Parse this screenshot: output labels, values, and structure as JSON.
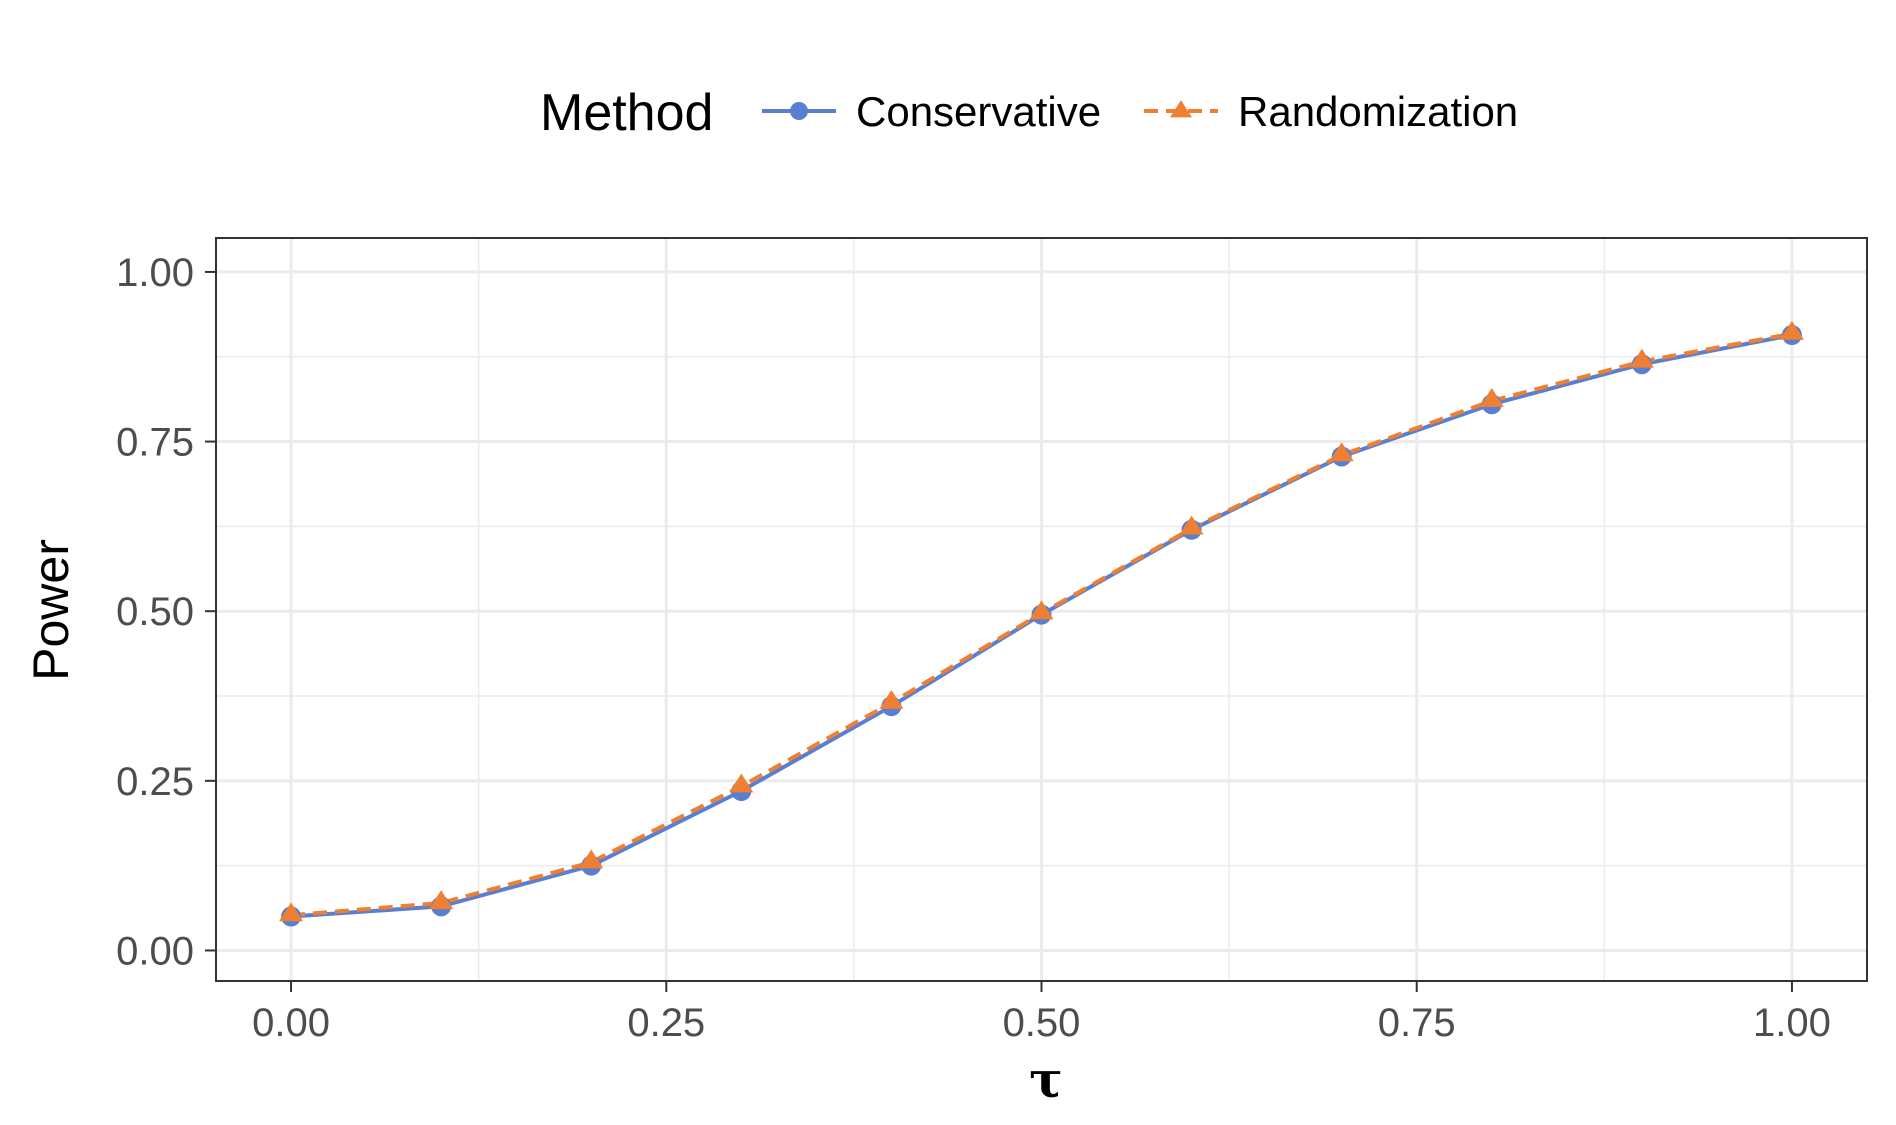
{
  "chart_data": {
    "type": "line",
    "xlabel": "τ",
    "ylabel": "Power",
    "xlim": [
      -0.05,
      1.05
    ],
    "ylim": [
      -0.045,
      1.05
    ],
    "x_ticks": [
      0,
      0.25,
      0.5,
      0.75,
      1
    ],
    "x_tick_labels": [
      "0.00",
      "0.25",
      "0.50",
      "0.75",
      "1.00"
    ],
    "y_ticks": [
      0,
      0.25,
      0.5,
      0.75,
      1
    ],
    "y_tick_labels": [
      "0.00",
      "0.25",
      "0.50",
      "0.75",
      "1.00"
    ],
    "x_minor_ticks": [
      0.125,
      0.375,
      0.625,
      0.875
    ],
    "y_minor_ticks": [
      0.125,
      0.375,
      0.625,
      0.875
    ],
    "grid": true,
    "legend": {
      "title": "Method",
      "position": "top"
    },
    "x": [
      0,
      0.1,
      0.2,
      0.3,
      0.4,
      0.5,
      0.6,
      0.7,
      0.8,
      0.9,
      1.0
    ],
    "series": [
      {
        "name": "Conservative",
        "values": [
          0.05,
          0.065,
          0.125,
          0.235,
          0.36,
          0.495,
          0.62,
          0.728,
          0.805,
          0.864,
          0.907
        ],
        "color": "#5b7fd0",
        "marker": "circle",
        "line_style": "solid"
      },
      {
        "name": "Randomization",
        "values": [
          0.052,
          0.07,
          0.13,
          0.242,
          0.365,
          0.497,
          0.622,
          0.73,
          0.81,
          0.868,
          0.909
        ],
        "color": "#ef7f32",
        "marker": "triangle",
        "line_style": "dashed"
      }
    ]
  }
}
